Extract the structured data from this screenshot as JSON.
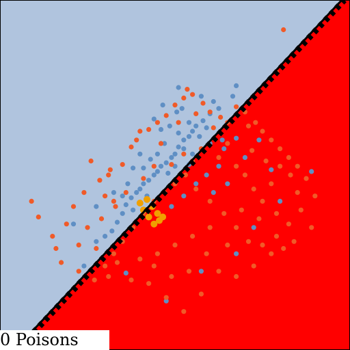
{
  "caption": "0 Poisons",
  "colors": {
    "region_above": "#b0c4de",
    "region_below": "#ff0000",
    "class_blue": "#5f8fc4",
    "class_orange": "#f05a28",
    "highlight": "#f0a000",
    "boundary": "#000000"
  },
  "chart_data": {
    "type": "scatter",
    "title": "",
    "xlabel": "",
    "ylabel": "",
    "grid": false,
    "xlim": [
      -1,
      1
    ],
    "ylim": [
      -1,
      1
    ],
    "regions": [
      {
        "side": "above-left",
        "color": "#b0c4de"
      },
      {
        "side": "below-right",
        "color": "#ff0000"
      }
    ],
    "decision_boundary": {
      "slope": 1.07,
      "intercept": -0.02,
      "style": "solid"
    },
    "reference_boundary": {
      "slope": 1.07,
      "intercept": -0.035,
      "style": "dashed"
    },
    "series": [
      {
        "color": "#5f8fc4",
        "points": [
          [
            0.35,
            0.51
          ],
          [
            0.33,
            0.45
          ],
          [
            0.25,
            0.38
          ],
          [
            0.2,
            0.35
          ],
          [
            0.16,
            0.31
          ],
          [
            0.1,
            0.25
          ],
          [
            0.08,
            0.22
          ],
          [
            0.05,
            0.2
          ],
          [
            0.02,
            0.16
          ],
          [
            0.0,
            0.12
          ],
          [
            -0.02,
            0.1
          ],
          [
            -0.05,
            0.07
          ],
          [
            -0.08,
            0.05
          ],
          [
            -0.1,
            0.02
          ],
          [
            -0.12,
            0.0
          ],
          [
            -0.15,
            -0.03
          ],
          [
            -0.18,
            -0.05
          ],
          [
            -0.2,
            -0.08
          ],
          [
            -0.22,
            -0.1
          ],
          [
            -0.25,
            -0.13
          ],
          [
            -0.28,
            -0.17
          ],
          [
            -0.3,
            -0.22
          ],
          [
            -0.33,
            -0.27
          ],
          [
            -0.36,
            -0.32
          ],
          [
            -0.4,
            -0.35
          ],
          [
            -0.45,
            -0.38
          ],
          [
            -0.52,
            -0.52
          ],
          [
            -0.58,
            -0.28
          ],
          [
            -0.45,
            -0.18
          ],
          [
            -0.12,
            0.32
          ],
          [
            -0.07,
            0.4
          ],
          [
            0.01,
            0.36
          ],
          [
            0.08,
            0.3
          ],
          [
            0.04,
            0.38
          ],
          [
            -0.03,
            0.28
          ],
          [
            -0.06,
            0.18
          ],
          [
            -0.1,
            0.12
          ],
          [
            -0.14,
            0.09
          ],
          [
            -0.18,
            0.04
          ],
          [
            -0.08,
            0.26
          ],
          [
            0.02,
            0.24
          ],
          [
            0.12,
            0.28
          ],
          [
            0.14,
            0.22
          ],
          [
            0.18,
            0.27
          ],
          [
            0.05,
            0.15
          ],
          [
            0.0,
            0.05
          ],
          [
            -0.04,
            0.01
          ],
          [
            -0.16,
            -0.12
          ],
          [
            -0.24,
            -0.2
          ],
          [
            -0.3,
            -0.12
          ],
          [
            -0.35,
            -0.1
          ],
          [
            0.08,
            0.06
          ],
          [
            0.1,
            0.12
          ],
          [
            0.2,
            0.18
          ],
          [
            0.28,
            0.15
          ],
          [
            0.25,
            0.05
          ],
          [
            0.18,
            0.0
          ],
          [
            0.12,
            -0.05
          ],
          [
            0.05,
            -0.12
          ],
          [
            -0.02,
            -0.18
          ],
          [
            -0.08,
            -0.25
          ],
          [
            0.22,
            -0.1
          ],
          [
            0.3,
            -0.05
          ],
          [
            0.4,
            0.1
          ],
          [
            0.48,
            0.2
          ],
          [
            0.55,
            0.03
          ],
          [
            0.6,
            -0.15
          ],
          [
            0.45,
            -0.3
          ],
          [
            0.35,
            -0.45
          ],
          [
            0.15,
            -0.55
          ],
          [
            -0.05,
            -0.72
          ],
          [
            -0.28,
            -0.56
          ],
          [
            0.78,
            0.02
          ],
          [
            0.35,
            0.21
          ],
          [
            0.27,
            0.2
          ],
          [
            -0.2,
            0.12
          ],
          [
            -0.24,
            0.04
          ],
          [
            -0.27,
            -0.05
          ],
          [
            0.02,
            0.5
          ],
          [
            0.15,
            0.45
          ],
          [
            0.22,
            0.42
          ]
        ]
      },
      {
        "color": "#f05a28",
        "points": [
          [
            0.62,
            0.83
          ],
          [
            0.58,
            0.59
          ],
          [
            0.07,
            0.49
          ],
          [
            -0.2,
            0.25
          ],
          [
            -0.25,
            0.16
          ],
          [
            -0.37,
            0.03
          ],
          [
            -0.43,
            -0.03
          ],
          [
            -0.48,
            0.08
          ],
          [
            -0.52,
            -0.1
          ],
          [
            -0.58,
            -0.18
          ],
          [
            -0.62,
            -0.28
          ],
          [
            -0.68,
            -0.42
          ],
          [
            -0.78,
            -0.24
          ],
          [
            -0.82,
            -0.15
          ],
          [
            -0.7,
            -0.35
          ],
          [
            -0.65,
            -0.5
          ],
          [
            -0.55,
            -0.55
          ],
          [
            -0.46,
            -0.6
          ],
          [
            -0.38,
            -0.58
          ],
          [
            -0.33,
            -0.5
          ],
          [
            -0.5,
            -0.3
          ],
          [
            -0.42,
            -0.25
          ],
          [
            -0.35,
            -0.15
          ],
          [
            -0.3,
            0.06
          ],
          [
            -0.22,
            0.2
          ],
          [
            -0.15,
            0.26
          ],
          [
            -0.1,
            0.3
          ],
          [
            -0.05,
            0.34
          ],
          [
            0.0,
            0.4
          ],
          [
            0.05,
            0.44
          ],
          [
            0.1,
            0.46
          ],
          [
            0.16,
            0.41
          ],
          [
            0.2,
            0.36
          ],
          [
            0.26,
            0.33
          ],
          [
            0.3,
            0.3
          ],
          [
            0.35,
            0.39
          ],
          [
            0.4,
            0.36
          ],
          [
            0.42,
            0.28
          ],
          [
            0.46,
            0.3
          ],
          [
            0.5,
            0.25
          ],
          [
            0.55,
            0.2
          ],
          [
            0.6,
            0.15
          ],
          [
            0.65,
            0.1
          ],
          [
            0.7,
            0.05
          ],
          [
            0.75,
            -0.02
          ],
          [
            0.8,
            -0.12
          ],
          [
            0.72,
            -0.2
          ],
          [
            0.65,
            -0.28
          ],
          [
            0.58,
            -0.35
          ],
          [
            0.5,
            -0.4
          ],
          [
            0.42,
            -0.38
          ],
          [
            0.35,
            -0.3
          ],
          [
            0.28,
            -0.22
          ],
          [
            0.2,
            -0.15
          ],
          [
            0.12,
            -0.08
          ],
          [
            0.06,
            0.0
          ],
          [
            0.0,
            -0.05
          ],
          [
            -0.06,
            -0.1
          ],
          [
            -0.12,
            -0.15
          ],
          [
            -0.18,
            -0.22
          ],
          [
            -0.24,
            -0.3
          ],
          [
            -0.3,
            -0.38
          ],
          [
            -0.35,
            -0.45
          ],
          [
            -0.4,
            -0.52
          ],
          [
            -0.25,
            -0.6
          ],
          [
            -0.15,
            -0.62
          ],
          [
            -0.05,
            -0.7
          ],
          [
            0.05,
            -0.78
          ],
          [
            0.15,
            -0.68
          ],
          [
            0.25,
            -0.55
          ],
          [
            0.35,
            -0.58
          ],
          [
            0.45,
            -0.52
          ],
          [
            0.55,
            -0.45
          ],
          [
            0.62,
            -0.42
          ],
          [
            0.68,
            -0.38
          ],
          [
            0.78,
            -0.3
          ],
          [
            0.25,
            0.1
          ],
          [
            0.3,
            0.18
          ],
          [
            0.35,
            0.05
          ],
          [
            0.4,
            0.0
          ],
          [
            0.45,
            -0.08
          ],
          [
            0.5,
            -0.15
          ],
          [
            0.55,
            -0.05
          ],
          [
            0.6,
            0.05
          ],
          [
            0.2,
            -0.3
          ],
          [
            0.1,
            -0.35
          ],
          [
            0.0,
            -0.4
          ],
          [
            -0.1,
            -0.45
          ],
          [
            -0.2,
            -0.48
          ],
          [
            0.15,
            0.15
          ],
          [
            0.1,
            0.08
          ],
          [
            0.05,
            0.12
          ],
          [
            -0.02,
            0.06
          ],
          [
            -0.12,
            0.05
          ],
          [
            -0.18,
            -0.02
          ],
          [
            -0.28,
            -0.1
          ],
          [
            -0.34,
            -0.18
          ],
          [
            -0.4,
            -0.12
          ],
          [
            -0.08,
            0.18
          ],
          [
            0.02,
            0.3
          ],
          [
            0.12,
            0.35
          ],
          [
            0.22,
            0.27
          ],
          [
            -0.38,
            0.0
          ],
          [
            -0.45,
            -0.42
          ],
          [
            -0.55,
            -0.4
          ],
          [
            0.38,
            -0.2
          ],
          [
            0.48,
            -0.25
          ],
          [
            0.3,
            -0.4
          ],
          [
            0.18,
            -0.45
          ],
          [
            0.08,
            -0.55
          ],
          [
            -0.02,
            -0.58
          ],
          [
            -0.12,
            -0.52
          ],
          [
            0.7,
            -0.1
          ],
          [
            0.66,
            0.0
          ],
          [
            0.58,
            -0.22
          ],
          [
            0.52,
            0.08
          ],
          [
            0.44,
            0.14
          ]
        ]
      },
      {
        "color": "#f0a000",
        "points": [
          [
            -0.15,
            -0.24
          ],
          [
            -0.12,
            -0.28
          ],
          [
            -0.1,
            -0.22
          ],
          [
            -0.18,
            -0.2
          ],
          [
            -0.13,
            -0.18
          ],
          [
            -0.09,
            -0.26
          ],
          [
            -0.2,
            -0.16
          ],
          [
            -0.16,
            -0.14
          ],
          [
            -0.07,
            -0.24
          ]
        ]
      }
    ]
  }
}
